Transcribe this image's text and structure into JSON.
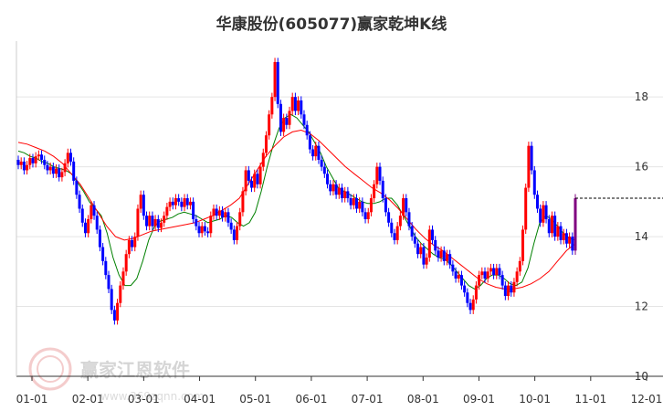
{
  "chart_data": {
    "type": "candlestick",
    "title": "华康股份(605077)赢家乾坤K线",
    "xlabel": "",
    "ylabel": "",
    "ylim": [
      10,
      19.6
    ],
    "yticks": [
      10,
      12,
      14,
      16,
      18
    ],
    "x_ticks": [
      "01-01",
      "02-01",
      "03-01",
      "04-01",
      "05-01",
      "06-01",
      "07-01",
      "08-01",
      "09-01",
      "10-01",
      "11-01",
      "12-01"
    ],
    "grid": true,
    "last_price": 15.1,
    "colors": {
      "up": "#ff0000",
      "down": "#0000ff",
      "special": "#800080",
      "ma_short": "#008000",
      "ma_long": "#ff0000",
      "grid": "#e5e5e5",
      "axis": "#333333"
    },
    "series": [
      {
        "type": "candles",
        "values": [
          [
            16.2,
            16.05
          ],
          [
            16.05,
            16.15
          ],
          [
            16.15,
            15.9
          ],
          [
            15.9,
            16.05
          ],
          [
            16.05,
            16.25
          ],
          [
            16.25,
            16.1
          ],
          [
            16.1,
            16.3
          ],
          [
            16.3,
            16.35
          ],
          [
            16.35,
            16.2
          ],
          [
            16.2,
            16.05
          ],
          [
            16.05,
            15.9
          ],
          [
            15.9,
            16.0
          ],
          [
            16.0,
            15.8
          ],
          [
            15.8,
            15.95
          ],
          [
            15.95,
            15.7
          ],
          [
            15.7,
            15.85
          ],
          [
            15.85,
            16.1
          ],
          [
            16.1,
            16.4
          ],
          [
            16.4,
            16.15
          ],
          [
            16.15,
            15.6
          ],
          [
            15.6,
            15.2
          ],
          [
            15.2,
            14.8
          ],
          [
            14.8,
            14.4
          ],
          [
            14.4,
            14.1
          ],
          [
            14.1,
            14.5
          ],
          [
            14.5,
            14.9
          ],
          [
            14.9,
            14.6
          ],
          [
            14.6,
            14.2
          ],
          [
            14.2,
            13.7
          ],
          [
            13.7,
            13.3
          ],
          [
            13.3,
            12.9
          ],
          [
            12.9,
            12.5
          ],
          [
            12.5,
            11.9
          ],
          [
            11.9,
            11.6
          ],
          [
            11.6,
            12.1
          ],
          [
            12.1,
            12.6
          ],
          [
            12.6,
            13.0
          ],
          [
            13.0,
            13.5
          ],
          [
            13.5,
            13.9
          ],
          [
            13.9,
            13.7
          ],
          [
            13.7,
            14.0
          ],
          [
            14.0,
            14.8
          ],
          [
            14.8,
            15.2
          ],
          [
            15.2,
            14.6
          ],
          [
            14.6,
            14.3
          ],
          [
            14.3,
            14.6
          ],
          [
            14.6,
            14.3
          ],
          [
            14.3,
            14.5
          ],
          [
            14.5,
            14.25
          ],
          [
            14.25,
            14.4
          ],
          [
            14.4,
            14.6
          ],
          [
            14.6,
            14.85
          ],
          [
            14.85,
            15.0
          ],
          [
            15.0,
            14.9
          ],
          [
            14.9,
            15.1
          ],
          [
            15.1,
            15.0
          ],
          [
            15.0,
            14.85
          ],
          [
            14.85,
            15.1
          ],
          [
            15.1,
            14.9
          ],
          [
            14.9,
            15.0
          ],
          [
            15.0,
            14.5
          ],
          [
            14.5,
            14.3
          ],
          [
            14.3,
            14.1
          ],
          [
            14.1,
            14.3
          ],
          [
            14.3,
            14.15
          ],
          [
            14.15,
            14.1
          ],
          [
            14.1,
            14.6
          ],
          [
            14.6,
            14.8
          ],
          [
            14.8,
            14.6
          ],
          [
            14.6,
            14.75
          ],
          [
            14.75,
            14.55
          ],
          [
            14.55,
            14.7
          ],
          [
            14.7,
            14.4
          ],
          [
            14.4,
            14.2
          ],
          [
            14.2,
            13.9
          ],
          [
            13.9,
            14.3
          ],
          [
            14.3,
            14.7
          ],
          [
            14.7,
            15.3
          ],
          [
            15.3,
            15.9
          ],
          [
            15.9,
            15.6
          ],
          [
            15.6,
            15.4
          ],
          [
            15.4,
            15.8
          ],
          [
            15.8,
            15.5
          ],
          [
            15.5,
            16.0
          ],
          [
            16.0,
            16.4
          ],
          [
            16.4,
            16.9
          ],
          [
            16.9,
            17.5
          ],
          [
            17.5,
            18.0
          ],
          [
            18.0,
            19.0
          ],
          [
            19.0,
            17.8
          ],
          [
            17.8,
            17.0
          ],
          [
            17.0,
            17.4
          ],
          [
            17.4,
            17.2
          ],
          [
            17.2,
            17.6
          ],
          [
            17.6,
            18.0
          ],
          [
            18.0,
            17.6
          ],
          [
            17.6,
            17.9
          ],
          [
            17.9,
            17.5
          ],
          [
            17.5,
            17.2
          ],
          [
            17.2,
            16.9
          ],
          [
            16.9,
            16.5
          ],
          [
            16.5,
            16.3
          ],
          [
            16.3,
            16.6
          ],
          [
            16.6,
            16.2
          ],
          [
            16.2,
            16.0
          ],
          [
            16.0,
            15.8
          ],
          [
            15.8,
            15.5
          ],
          [
            15.5,
            15.3
          ],
          [
            15.3,
            15.5
          ],
          [
            15.5,
            15.2
          ],
          [
            15.2,
            15.4
          ],
          [
            15.4,
            15.1
          ],
          [
            15.1,
            15.3
          ],
          [
            15.3,
            15.1
          ],
          [
            15.1,
            14.9
          ],
          [
            14.9,
            15.1
          ],
          [
            15.1,
            14.8
          ],
          [
            14.8,
            15.0
          ],
          [
            15.0,
            14.7
          ],
          [
            14.7,
            14.5
          ],
          [
            14.5,
            14.7
          ],
          [
            14.7,
            15.1
          ],
          [
            15.1,
            15.5
          ],
          [
            15.5,
            16.0
          ],
          [
            16.0,
            15.6
          ],
          [
            15.6,
            15.1
          ],
          [
            15.1,
            14.7
          ],
          [
            14.7,
            14.4
          ],
          [
            14.4,
            14.1
          ],
          [
            14.1,
            13.9
          ],
          [
            13.9,
            14.3
          ],
          [
            14.3,
            14.6
          ],
          [
            14.6,
            15.1
          ],
          [
            15.1,
            14.7
          ],
          [
            14.7,
            14.3
          ],
          [
            14.3,
            14.0
          ],
          [
            14.0,
            13.8
          ],
          [
            13.8,
            13.5
          ],
          [
            13.5,
            13.7
          ],
          [
            13.7,
            13.2
          ],
          [
            13.2,
            13.4
          ],
          [
            13.4,
            14.2
          ],
          [
            14.2,
            13.9
          ],
          [
            13.9,
            13.6
          ],
          [
            13.6,
            13.4
          ],
          [
            13.4,
            13.6
          ],
          [
            13.6,
            13.3
          ],
          [
            13.3,
            13.5
          ],
          [
            13.5,
            13.2
          ],
          [
            13.2,
            13.0
          ],
          [
            13.0,
            12.8
          ],
          [
            12.8,
            12.9
          ],
          [
            12.9,
            12.6
          ],
          [
            12.6,
            12.4
          ],
          [
            12.4,
            12.1
          ],
          [
            12.1,
            11.9
          ],
          [
            11.9,
            12.2
          ],
          [
            12.2,
            12.6
          ],
          [
            12.6,
            12.9
          ],
          [
            12.9,
            13.0
          ],
          [
            13.0,
            12.8
          ],
          [
            12.8,
            13.0
          ],
          [
            13.0,
            13.1
          ],
          [
            13.1,
            12.9
          ],
          [
            12.9,
            13.1
          ],
          [
            13.1,
            12.9
          ],
          [
            12.9,
            12.6
          ],
          [
            12.6,
            12.3
          ],
          [
            12.3,
            12.6
          ],
          [
            12.6,
            12.4
          ],
          [
            12.4,
            12.7
          ],
          [
            12.7,
            13.0
          ],
          [
            13.0,
            13.3
          ],
          [
            13.3,
            14.2
          ],
          [
            14.2,
            15.4
          ],
          [
            15.4,
            16.6
          ],
          [
            16.6,
            15.9
          ],
          [
            15.9,
            15.2
          ],
          [
            15.2,
            14.8
          ],
          [
            14.8,
            14.4
          ],
          [
            14.4,
            14.9
          ],
          [
            14.9,
            14.5
          ],
          [
            14.5,
            14.1
          ],
          [
            14.1,
            14.6
          ],
          [
            14.6,
            14.0
          ],
          [
            14.0,
            14.3
          ],
          [
            14.3,
            13.9
          ],
          [
            13.9,
            14.1
          ],
          [
            14.1,
            13.8
          ],
          [
            13.8,
            14.0
          ],
          [
            14.0,
            13.6
          ],
          [
            13.6,
            15.1
          ]
        ]
      },
      {
        "type": "ma_short",
        "values": [
          16.45,
          16.4,
          16.3,
          16.25,
          16.15,
          16.1,
          16.0,
          15.95,
          15.9,
          15.8,
          15.55,
          15.3,
          15.0,
          14.8,
          14.6,
          14.1,
          13.4,
          12.9,
          12.6,
          12.6,
          12.8,
          13.3,
          13.9,
          14.3,
          14.45,
          14.5,
          14.55,
          14.65,
          14.7,
          14.65,
          14.6,
          14.5,
          14.4,
          14.45,
          14.5,
          14.6,
          14.55,
          14.4,
          14.3,
          14.4,
          14.7,
          15.3,
          16.0,
          16.6,
          17.1,
          17.4,
          17.5,
          17.4,
          17.2,
          17.0,
          16.7,
          16.4,
          16.0,
          15.7,
          15.4,
          15.3,
          15.2,
          15.1,
          15.0,
          14.95,
          14.95,
          15.0,
          15.1,
          15.1,
          14.9,
          14.6,
          14.3,
          14.0,
          13.8,
          13.65,
          13.5,
          13.4,
          13.35,
          13.2,
          13.0,
          12.8,
          12.6,
          12.5,
          12.6,
          12.8,
          12.9,
          12.9,
          12.8,
          12.65,
          12.6,
          12.7,
          13.1,
          13.8,
          14.4,
          14.6,
          14.5,
          14.3,
          14.1,
          13.95,
          13.9
        ]
      },
      {
        "type": "ma_long",
        "values": [
          16.7,
          16.65,
          16.55,
          16.45,
          16.3,
          16.1,
          15.8,
          15.5,
          15.1,
          14.7,
          14.3,
          14.0,
          13.9,
          13.95,
          14.05,
          14.15,
          14.2,
          14.25,
          14.3,
          14.35,
          14.4,
          14.5,
          14.6,
          14.75,
          14.9,
          15.1,
          15.5,
          15.9,
          16.3,
          16.6,
          16.85,
          17.0,
          17.05,
          16.95,
          16.75,
          16.5,
          16.25,
          16.0,
          15.8,
          15.6,
          15.4,
          15.25,
          15.05,
          14.8,
          14.5,
          14.2,
          13.95,
          13.75,
          13.6,
          13.4,
          13.2,
          13.0,
          12.8,
          12.65,
          12.55,
          12.5,
          12.5,
          12.55,
          12.65,
          12.8,
          13.0,
          13.3,
          13.6,
          13.8
        ]
      }
    ]
  },
  "watermark": {
    "brand": "赢家江恩软件",
    "url": "www.369zqnn.com",
    "logo": ""
  }
}
